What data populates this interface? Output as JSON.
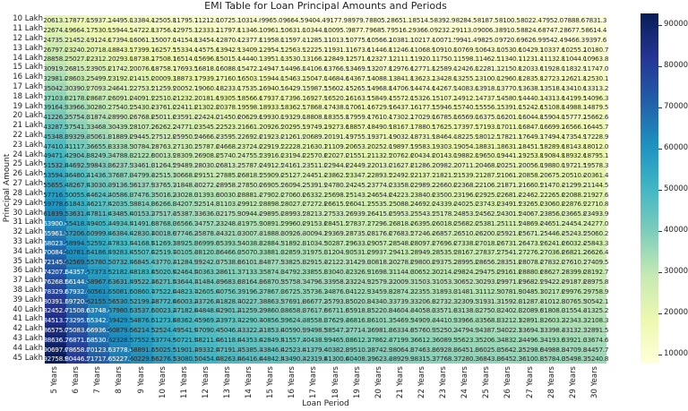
{
  "chart_data": {
    "type": "heatmap",
    "title": "EMI Table for Loan Principal Amounts and Periods",
    "xlabel": "Loan Period",
    "ylabel": "Principal Amount",
    "colormap": "YlGnBu",
    "colormap_stops": [
      "#ffffd9",
      "#edf8b1",
      "#c7e9b4",
      "#7fcdbb",
      "#41b6c4",
      "#1d91c0",
      "#225ea8",
      "#253494",
      "#081d58"
    ],
    "colorbar_ticks": [
      10000,
      20000,
      30000,
      40000,
      50000,
      60000,
      70000,
      80000,
      90000
    ],
    "color_range": [
      7831.3,
      92758.95
    ],
    "rows": [
      "10 Lakh",
      "11 Lakh",
      "12 Lakh",
      "13 Lakh",
      "14 Lakh",
      "15 Lakh",
      "16 Lakh",
      "17 Lakh",
      "18 Lakh",
      "19 Lakh",
      "20 Lakh",
      "21 Lakh",
      "22 Lakh",
      "23 Lakh",
      "24 Lakh",
      "25 Lakh",
      "26 Lakh",
      "27 Lakh",
      "28 Lakh",
      "29 Lakh",
      "30 Lakh",
      "31 Lakh",
      "32 Lakh",
      "33 Lakh",
      "34 Lakh",
      "35 Lakh",
      "36 Lakh",
      "37 Lakh",
      "38 Lakh",
      "39 Lakh",
      "40 Lakh",
      "41 Lakh",
      "42 Lakh",
      "43 Lakh",
      "44 Lakh",
      "45 Lakh"
    ],
    "columns": [
      "5 Years",
      "6 Years",
      "7 Years",
      "8 Years",
      "9 Years",
      "10 Years",
      "11 Years",
      "12 Years",
      "13 Years",
      "14 Years",
      "15 Years",
      "16 Years",
      "17 Years",
      "18 Years",
      "19 Years",
      "20 Years",
      "21 Years",
      "22 Years",
      "23 Years",
      "24 Years",
      "25 Years",
      "26 Years",
      "27 Years",
      "28 Years",
      "29 Years",
      "30 Years"
    ],
    "values": [
      [
        20613.1,
        17877.0,
        15937.2,
        14495.0,
        13384.4,
        12505.8,
        11795.7,
        11212.0,
        10725.3,
        10314.8,
        9965.0,
        9664.5,
        9404.4,
        9177.9,
        8979.7,
        8805.2,
        8651.1,
        8514.5,
        8392.9,
        8284.5,
        8187.5,
        8100.5,
        8022.4,
        7952.0,
        7888.6,
        7831.3
      ],
      [
        22674.41,
        19664.7,
        17530.92,
        15944.5,
        14722.84,
        13756.38,
        12975.27,
        12333.2,
        11797.83,
        11346.28,
        10961.5,
        10630.95,
        10344.84,
        10095.69,
        9877.67,
        9685.72,
        9516.21,
        9365.95,
        9232.19,
        9112.95,
        9006.25,
        8910.55,
        8824.64,
        8747.2,
        8677.46,
        8614.43
      ],
      [
        24735.72,
        21452.4,
        19124.64,
        17394.0,
        16061.28,
        15006.96,
        14154.84,
        13454.4,
        12870.36,
        12377.76,
        11958.0,
        11597.4,
        11285.28,
        11013.48,
        10775.64,
        10566.24,
        10381.32,
        10217.4,
        10071.48,
        9941.4,
        9825.0,
        9720.6,
        9626.88,
        9542.4,
        9466.32,
        9397.56
      ],
      [
        26797.03,
        23240.1,
        20718.36,
        18843.5,
        17399.72,
        16257.54,
        15334.41,
        14575.6,
        13942.89,
        13409.24,
        12954.5,
        12563.85,
        12225.72,
        11931.27,
        11673.61,
        11446.76,
        11246.43,
        11068.85,
        10910.77,
        10769.85,
        10643.75,
        10530.65,
        10429.12,
        10337.6,
        10255.18,
        10180.69
      ],
      [
        28858.34,
        25027.8,
        22312.08,
        20293.0,
        18738.16,
        17508.12,
        16513.98,
        15696.8,
        15015.42,
        14440.72,
        13951.0,
        13530.3,
        13166.16,
        12849.06,
        12571.58,
        12327.28,
        12111.54,
        11920.3,
        11750.06,
        11598.3,
        11462.5,
        11340.7,
        11231.36,
        11132.8,
        11044.04,
        10963.82
      ],
      [
        30919.65,
        26815.5,
        23905.8,
        21742.5,
        20076.6,
        18758.7,
        17693.55,
        16818.0,
        16087.95,
        15472.2,
        14947.5,
        14496.75,
        14106.6,
        13766.85,
        13469.55,
        13207.8,
        12976.65,
        12771.75,
        12589.35,
        12426.75,
        12281.25,
        12150.75,
        12033.6,
        11928.0,
        11832.9,
        11746.95
      ],
      [
        32980.96,
        28603.2,
        25499.52,
        23192.0,
        21415.04,
        20009.28,
        18873.12,
        17939.2,
        17160.48,
        16503.68,
        15944.0,
        15463.2,
        15047.04,
        14684.64,
        14367.52,
        14088.32,
        13841.76,
        13623.2,
        13428.64,
        13255.2,
        13100.0,
        12960.8,
        12835.84,
        12723.2,
        12621.76,
        12530.08
      ],
      [
        35042.27,
        30390.9,
        27093.24,
        24641.5,
        22753.48,
        21259.86,
        20052.69,
        19060.4,
        18233.01,
        17535.16,
        16940.5,
        16429.65,
        15987.48,
        15602.43,
        15265.49,
        14968.84,
        14706.87,
        14474.65,
        14267.93,
        14083.65,
        13918.75,
        13770.85,
        13638.08,
        13518.4,
        13410.62,
        13313.21
      ],
      [
        37103.58,
        32178.6,
        28686.96,
        26091.0,
        24091.92,
        22510.44,
        21232.26,
        20181.6,
        19305.54,
        18566.64,
        17937.0,
        17396.1,
        16927.92,
        16520.22,
        16163.46,
        15849.36,
        15571.98,
        15326.1,
        15107.22,
        14912.1,
        14737.5,
        14580.9,
        14440.32,
        14313.6,
        14199.48,
        14096.34
      ],
      [
        39164.89,
        33966.3,
        30280.68,
        27540.5,
        25430.36,
        23761.02,
        22411.83,
        21302.8,
        20378.07,
        19598.12,
        18933.5,
        18362.55,
        17868.36,
        17438.01,
        17061.43,
        16729.88,
        16437.09,
        16177.55,
        15946.51,
        15740.55,
        15556.25,
        15390.95,
        15242.56,
        15108.8,
        14988.34,
        14879.47
      ],
      [
        41226.2,
        35754.0,
        31874.4,
        28990.0,
        26768.8,
        25011.6,
        23591.4,
        22424.0,
        21450.6,
        20629.6,
        19930.0,
        19329.0,
        18808.8,
        18355.8,
        17959.4,
        17610.4,
        17302.2,
        17029.0,
        16785.8,
        16569.0,
        16375.0,
        16201.0,
        16044.8,
        15904.0,
        15777.2,
        15662.6
      ],
      [
        43287.51,
        37541.7,
        33468.12,
        30439.5,
        28107.24,
        26262.18,
        24770.97,
        23545.2,
        22523.13,
        21661.08,
        20926.5,
        20295.45,
        19749.24,
        19273.59,
        18857.37,
        18490.92,
        18167.31,
        17880.45,
        17625.09,
        17397.45,
        17193.75,
        17011.05,
        16847.04,
        16699.2,
        16566.06,
        16445.73
      ],
      [
        45348.82,
        39329.4,
        35061.84,
        31889.0,
        29445.68,
        27512.76,
        25950.54,
        24666.4,
        23595.66,
        22692.56,
        21923.0,
        21261.9,
        20689.68,
        20191.38,
        19755.34,
        19371.44,
        19032.42,
        18731.9,
        18464.38,
        18225.9,
        18012.5,
        17821.1,
        17649.28,
        17494.4,
        17354.92,
        17228.86
      ],
      [
        47410.13,
        41117.1,
        36655.56,
        33338.5,
        30784.12,
        28763.34,
        27130.11,
        25787.6,
        24668.19,
        23724.04,
        22919.5,
        22228.35,
        21630.12,
        21109.17,
        20653.31,
        20251.96,
        19897.53,
        19583.35,
        19303.67,
        19054.35,
        18831.25,
        18631.15,
        18451.52,
        18289.6,
        18143.78,
        18011.99
      ],
      [
        49471.44,
        42904.8,
        38249.28,
        34788.0,
        32122.56,
        30013.92,
        28309.68,
        26908.8,
        25740.72,
        24755.52,
        23916.0,
        23194.8,
        22570.56,
        22026.96,
        21551.28,
        21132.48,
        20762.64,
        20434.8,
        20142.96,
        19882.8,
        19650.0,
        19441.2,
        19253.76,
        19084.8,
        18932.64,
        18795.12
      ],
      [
        51532.75,
        44692.5,
        39843.0,
        36237.5,
        33461.0,
        31264.5,
        29489.25,
        28030.0,
        26813.25,
        25787.0,
        24912.5,
        24161.25,
        23511.0,
        22944.75,
        22449.25,
        22013.0,
        21627.75,
        21286.25,
        20982.25,
        20711.25,
        20468.75,
        20251.25,
        20056.0,
        19880.0,
        19721.5,
        19578.25
      ],
      [
        53594.06,
        46480.2,
        41436.72,
        37687.0,
        34799.44,
        32515.08,
        30668.82,
        29151.2,
        27885.78,
        26818.48,
        25909.0,
        25127.7,
        24451.44,
        23862.54,
        23347.22,
        22893.52,
        22492.86,
        22137.7,
        21821.54,
        21539.7,
        21287.5,
        21061.3,
        20858.24,
        20675.2,
        20510.36,
        20361.38
      ],
      [
        55655.37,
        48267.9,
        43030.44,
        39136.5,
        36137.88,
        33765.66,
        31848.39,
        30272.4,
        28958.31,
        27849.96,
        26905.5,
        26094.15,
        25391.88,
        24780.33,
        24245.19,
        23774.04,
        23357.97,
        22989.15,
        22660.83,
        22368.15,
        22106.25,
        21871.35,
        21660.48,
        21470.4,
        21299.22,
        21144.51
      ],
      [
        57716.68,
        50055.6,
        44624.16,
        40586.0,
        37476.32,
        35016.24,
        33027.96,
        31393.6,
        30030.84,
        28881.44,
        27902.0,
        27060.6,
        26332.32,
        25698.12,
        25143.16,
        24654.56,
        24223.08,
        23840.6,
        23500.12,
        23196.6,
        22925.0,
        22681.4,
        22462.72,
        22265.6,
        22088.08,
        21927.64
      ],
      [
        59777.99,
        51843.3,
        46217.88,
        42035.5,
        38814.76,
        36266.82,
        34207.53,
        32514.8,
        31103.37,
        29912.92,
        28898.5,
        28027.05,
        27272.76,
        26615.91,
        26041.13,
        25535.08,
        25088.19,
        24692.05,
        24339.41,
        24025.05,
        23743.75,
        23491.45,
        23264.96,
        23060.8,
        22876.94,
        22710.77
      ],
      [
        61839.3,
        53631.0,
        47811.6,
        43485.0,
        40153.2,
        37517.4,
        35387.1,
        33636.0,
        32175.9,
        30944.4,
        29895.0,
        28993.5,
        28213.2,
        27533.7,
        26939.1,
        26415.6,
        25953.3,
        25543.5,
        25178.7,
        24853.5,
        24562.5,
        24301.5,
        24067.2,
        23856.0,
        23665.8,
        23493.9
      ],
      [
        63900.61,
        55418.7,
        49405.32,
        44934.5,
        41491.64,
        38767.98,
        36566.67,
        34757.2,
        33248.43,
        31975.88,
        30891.5,
        29959.95,
        29153.64,
        28451.49,
        27837.07,
        27296.12,
        26818.41,
        26394.95,
        26017.99,
        25681.95,
        25381.25,
        25111.55,
        24869.44,
        24651.2,
        24454.66,
        24277.03
      ],
      [
        65961.92,
        57206.4,
        50999.04,
        46384.0,
        42830.08,
        40018.56,
        37746.24,
        35878.4,
        34320.96,
        33007.36,
        31888.0,
        30926.4,
        30094.08,
        29369.28,
        28735.04,
        28176.64,
        27683.52,
        27246.4,
        26857.28,
        26510.4,
        26200.0,
        25921.6,
        25671.68,
        25446.4,
        25243.52,
        25060.16
      ],
      [
        68023.23,
        58994.1,
        52592.76,
        47833.5,
        44168.52,
        41269.14,
        38925.81,
        36999.6,
        35393.49,
        34038.84,
        32884.5,
        31892.85,
        31034.52,
        30287.07,
        29633.01,
        29057.16,
        28548.63,
        28097.85,
        27696.57,
        27338.85,
        27018.75,
        26731.65,
        26473.92,
        26241.6,
        26032.38,
        25843.29
      ],
      [
        70084.54,
        60781.8,
        54186.48,
        49283.0,
        45506.96,
        42519.72,
        40105.38,
        38120.8,
        36466.02,
        35070.32,
        33881.0,
        32859.3,
        31974.96,
        31204.86,
        30530.98,
        29937.68,
        29413.74,
        28949.3,
        28535.86,
        28167.3,
        27837.5,
        27541.7,
        27276.16,
        27036.8,
        26821.24,
        26626.42
      ],
      [
        72145.85,
        62569.5,
        55780.2,
        50732.5,
        46845.4,
        43770.3,
        41284.95,
        39242.0,
        37538.55,
        36101.8,
        34877.5,
        33825.75,
        32915.4,
        32122.65,
        31428.95,
        30818.2,
        30278.85,
        29800.75,
        29375.15,
        28995.75,
        28656.25,
        28351.75,
        28078.4,
        27832.0,
        27610.1,
        27409.55
      ],
      [
        74207.16,
        64357.2,
        57373.92,
        52182.0,
        48183.84,
        45020.88,
        42464.52,
        40363.2,
        38611.08,
        37133.28,
        35874.0,
        34792.2,
        33855.84,
        33040.44,
        32326.92,
        31698.72,
        31143.96,
        30652.2,
        30214.44,
        29824.2,
        29475.0,
        29161.8,
        28880.64,
        28627.2,
        28398.96,
        28192.68
      ],
      [
        76268.47,
        66144.9,
        58967.64,
        53631.5,
        49522.28,
        46271.46,
        43644.09,
        41484.4,
        39683.61,
        38164.76,
        36870.5,
        35758.65,
        34796.28,
        33958.23,
        33224.89,
        32579.24,
        32009.07,
        31503.65,
        31053.73,
        30652.65,
        30293.75,
        29971.85,
        29682.88,
        29422.4,
        29187.82,
        28975.81
      ],
      [
        78329.78,
        67932.6,
        60561.36,
        55081.0,
        50860.72,
        47522.04,
        44823.66,
        42605.6,
        40756.14,
        39196.24,
        37867.0,
        36725.1,
        35736.72,
        34876.02,
        34122.86,
        33459.76,
        32874.18,
        32355.1,
        31893.02,
        31481.1,
        31112.5,
        30781.9,
        30485.12,
        30217.6,
        29976.68,
        29758.94
      ],
      [
        80391.09,
        69720.3,
        62155.08,
        56530.5,
        52199.16,
        48772.62,
        46003.23,
        43726.8,
        41828.67,
        40227.72,
        38863.5,
        37691.55,
        36677.16,
        35793.81,
        35020.83,
        34340.28,
        33739.29,
        33206.55,
        32732.31,
        32309.55,
        31931.25,
        31591.95,
        31287.36,
        31012.8,
        30765.54,
        30542.07
      ],
      [
        82452.4,
        71508.0,
        63748.8,
        57980.0,
        53537.6,
        50023.2,
        47182.8,
        44848.0,
        42901.2,
        41259.2,
        39860.0,
        38658.0,
        37617.6,
        36711.6,
        35918.8,
        35220.8,
        34604.4,
        34058.0,
        33571.6,
        33138.0,
        32750.0,
        32402.0,
        32089.6,
        31808.0,
        31554.4,
        31325.2
      ],
      [
        84513.71,
        73295.7,
        65342.52,
        59429.5,
        54876.04,
        51273.78,
        48362.37,
        45969.2,
        43973.73,
        42290.68,
        40856.5,
        39624.45,
        38558.04,
        37629.39,
        36816.77,
        36101.32,
        35469.51,
        34909.45,
        34410.89,
        33966.45,
        33568.75,
        33212.05,
        32891.84,
        32603.2,
        32343.26,
        32108.33
      ],
      [
        86575.02,
        75083.4,
        66936.24,
        60879.0,
        56214.48,
        52524.36,
        49541.94,
        47090.4,
        45046.26,
        43322.16,
        41853.0,
        40590.9,
        39498.48,
        38547.18,
        37714.74,
        36981.84,
        36334.62,
        35760.9,
        35250.18,
        34794.9,
        34387.5,
        34022.1,
        33694.08,
        33398.4,
        33132.12,
        32891.46
      ],
      [
        88636.33,
        76871.1,
        68529.96,
        62328.5,
        57552.92,
        53774.94,
        50721.51,
        48211.6,
        46118.79,
        44353.64,
        42849.5,
        41557.35,
        40438.92,
        39464.97,
        38612.71,
        37862.36,
        37199.73,
        36612.35,
        36089.47,
        35623.35,
        35206.25,
        34832.15,
        34496.32,
        34193.6,
        33920.98,
        33674.59
      ],
      [
        90697.64,
        78658.8,
        70123.68,
        63778.0,
        58891.36,
        55025.52,
        51901.08,
        49332.8,
        47191.32,
        45385.12,
        43846.0,
        42523.8,
        41379.36,
        40382.76,
        39510.68,
        38742.88,
        38064.84,
        37463.8,
        36928.76,
        36451.8,
        36025.0,
        35642.2,
        35298.56,
        34988.8,
        34709.84,
        34457.72
      ],
      [
        92758.95,
        80446.5,
        71717.4,
        65227.5,
        60229.8,
        56276.1,
        53080.65,
        50454.0,
        48263.85,
        46416.6,
        44842.5,
        43490.25,
        42319.8,
        41300.55,
        40408.65,
        39623.4,
        38929.95,
        38315.25,
        37768.05,
        37280.25,
        36843.75,
        36452.25,
        36100.8,
        35784.0,
        35498.7,
        35240.85
      ]
    ]
  }
}
